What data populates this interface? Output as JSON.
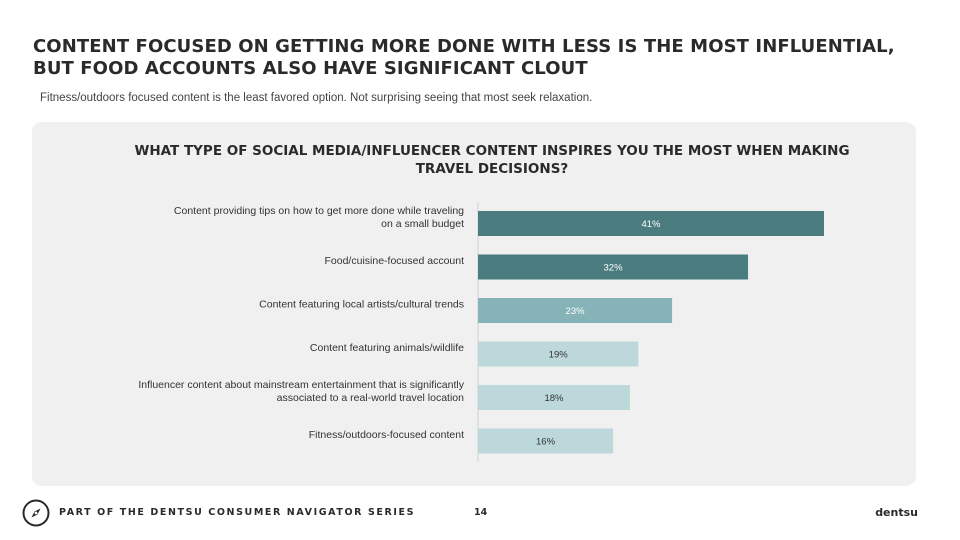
{
  "page": {
    "headline": "CONTENT FOCUSED ON GETTING MORE DONE WITH LESS IS THE MOST INFLUENTIAL, BUT FOOD ACCOUNTS ALSO HAVE SIGNIFICANT CLOUT",
    "subhead": "Fitness/outdoors focused content is the least favored option. Not surprising seeing that most seek relaxation."
  },
  "footer": {
    "logo_icon": "compass-icon",
    "series": "PART OF THE DENTSU CONSUMER NAVIGATOR SERIES",
    "page_number": "14",
    "brand": "dentsu"
  },
  "chart_data": {
    "type": "bar",
    "orientation": "horizontal",
    "title": "WHAT TYPE OF SOCIAL MEDIA/INFLUENCER CONTENT INSPIRES YOU THE MOST WHEN MAKING TRAVEL DECISIONS?",
    "categories": [
      [
        "Content providing tips on how to get more done while traveling",
        "on a small budget"
      ],
      [
        "Food/cuisine-focused account"
      ],
      [
        "Content featuring local artists/cultural trends"
      ],
      [
        "Content featuring animals/wildlife"
      ],
      [
        "Influencer content about mainstream entertainment that is significantly",
        "associated to a real-world travel location"
      ],
      [
        "Fitness/outdoors-focused content"
      ]
    ],
    "values": [
      41,
      32,
      23,
      19,
      18,
      16
    ],
    "value_labels": [
      "41%",
      "32%",
      "23%",
      "19%",
      "18%",
      "16%"
    ],
    "bar_colors": [
      "#4a7c80",
      "#4a7c80",
      "#85b3b7",
      "#bcd8da",
      "#bcd8da",
      "#bcd8da"
    ],
    "label_colors": [
      "#ffffff",
      "#ffffff",
      "#ffffff",
      "#333333",
      "#333333",
      "#333333"
    ],
    "xlim": [
      0,
      41
    ],
    "grid": false,
    "legend": "none"
  }
}
